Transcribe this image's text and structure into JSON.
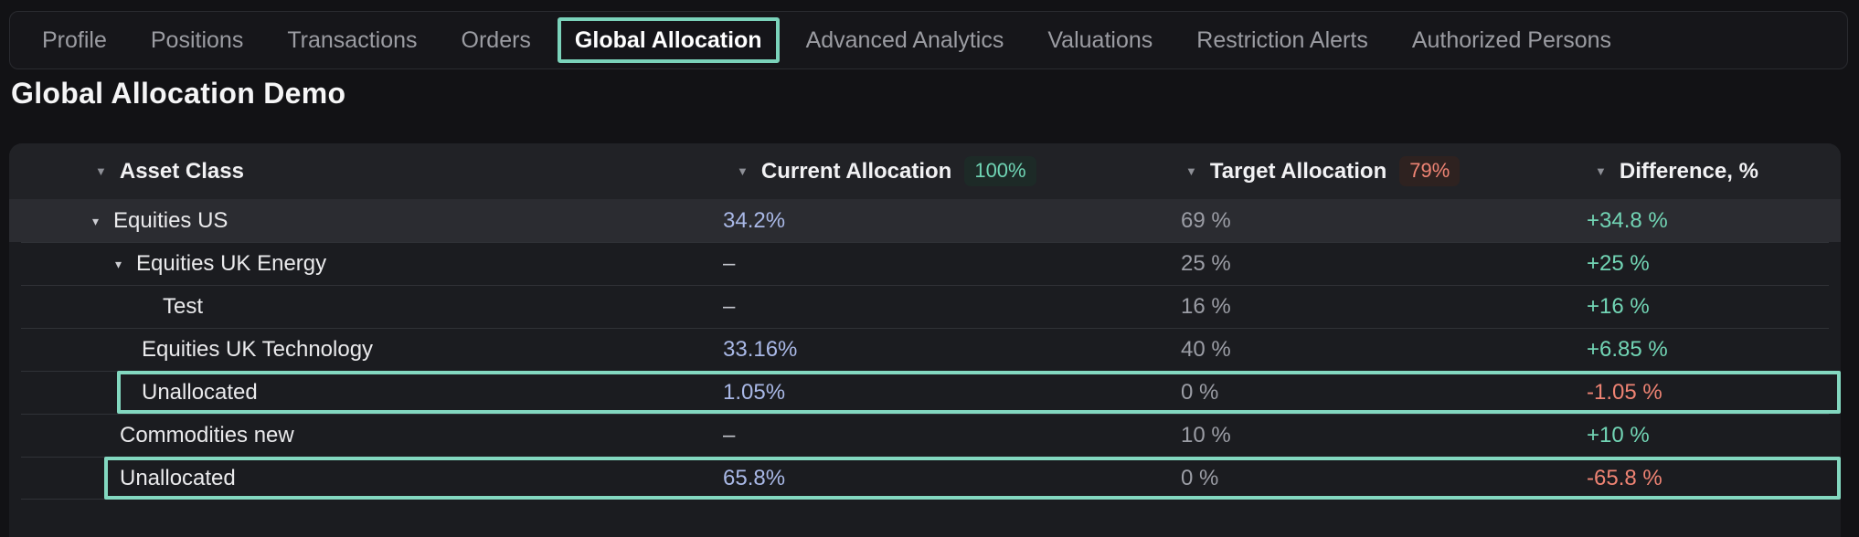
{
  "icons": {
    "sort_desc": "▼",
    "collapse": "▾"
  },
  "nav": {
    "items": [
      {
        "label": "Profile"
      },
      {
        "label": "Positions"
      },
      {
        "label": "Transactions"
      },
      {
        "label": "Orders"
      },
      {
        "label": "Global Allocation",
        "active": true
      },
      {
        "label": "Advanced Analytics"
      },
      {
        "label": "Valuations"
      },
      {
        "label": "Restriction Alerts"
      },
      {
        "label": "Authorized Persons"
      }
    ]
  },
  "page": {
    "title": "Global Allocation Demo"
  },
  "colors": {
    "accent_teal": "#7bd3bb",
    "accent_red": "#ee8373",
    "value_blue": "#a9b8e6"
  },
  "table": {
    "columns": [
      {
        "label": "Asset Class"
      },
      {
        "label": "Current Allocation",
        "badge": "100%"
      },
      {
        "label": "Target Allocation",
        "badge": "79%"
      },
      {
        "label": "Difference, %"
      }
    ],
    "rows": [
      {
        "name": "Equities US",
        "current": "34.2%",
        "target": "69 %",
        "diff": "+34.8 %"
      },
      {
        "name": "Equities UK Energy",
        "current": "–",
        "target": "25 %",
        "diff": "+25 %"
      },
      {
        "name": "Test",
        "current": "–",
        "target": "16 %",
        "diff": "+16 %"
      },
      {
        "name": "Equities UK Technology",
        "current": "33.16%",
        "target": "40 %",
        "diff": "+6.85 %"
      },
      {
        "name": "Unallocated",
        "current": "1.05%",
        "target": "0 %",
        "diff": "-1.05 %"
      },
      {
        "name": "Commodities new",
        "current": "–",
        "target": "10 %",
        "diff": "+10 %"
      },
      {
        "name": "Unallocated",
        "current": "65.8%",
        "target": "0 %",
        "diff": "-65.8 %"
      }
    ]
  }
}
